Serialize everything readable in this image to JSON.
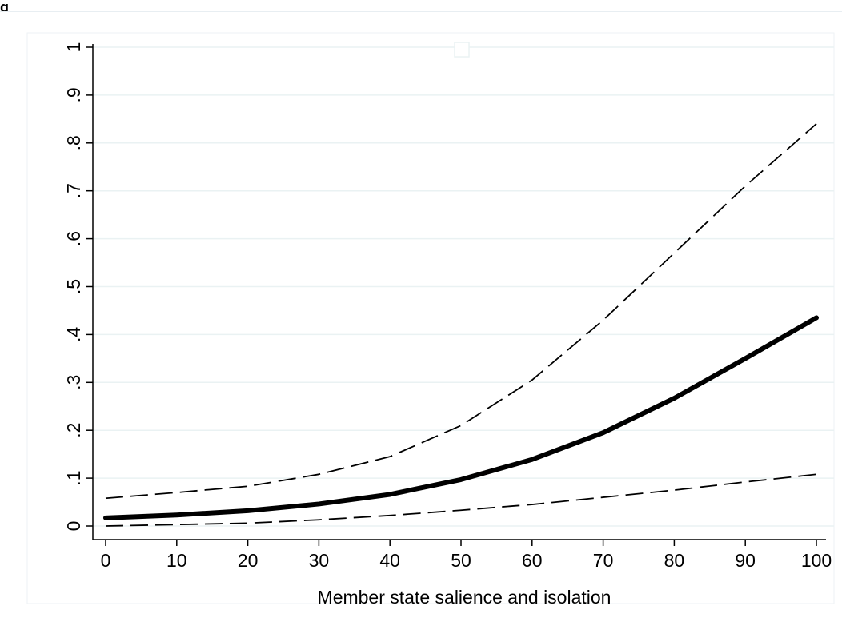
{
  "figure_label": "g",
  "chart_data": {
    "type": "line",
    "title": "",
    "xlabel": "Member state salience and isolation",
    "ylabel": "",
    "xlim": [
      0,
      100
    ],
    "ylim": [
      0,
      1
    ],
    "x": [
      0,
      10,
      20,
      30,
      40,
      50,
      60,
      70,
      80,
      90,
      100
    ],
    "x_ticks": [
      "0",
      "10",
      "20",
      "30",
      "40",
      "50",
      "60",
      "70",
      "80",
      "90",
      "100"
    ],
    "y_ticks": [
      "0",
      ".1",
      ".2",
      ".3",
      ".4",
      ".5",
      ".6",
      ".7",
      ".8",
      ".9",
      "1"
    ],
    "y_tick_values": [
      0,
      0.1,
      0.2,
      0.3,
      0.4,
      0.5,
      0.6,
      0.7,
      0.8,
      0.9,
      1
    ],
    "grid": true,
    "legend": "top-center",
    "series": [
      {
        "values": [
          0.017,
          0.023,
          0.032,
          0.046,
          0.066,
          0.097,
          0.139,
          0.195,
          0.267,
          0.35,
          0.435
        ],
        "style": "solid-thick",
        "color": "#000000"
      },
      {
        "values": [
          0.058,
          0.07,
          0.083,
          0.108,
          0.145,
          0.21,
          0.305,
          0.43,
          0.57,
          0.71,
          0.84
        ],
        "style": "dashed",
        "color": "#000000"
      },
      {
        "values": [
          0.0,
          0.003,
          0.006,
          0.013,
          0.022,
          0.033,
          0.045,
          0.06,
          0.075,
          0.092,
          0.108
        ],
        "style": "dashed",
        "color": "#000000"
      }
    ],
    "colors": {
      "grid": "#eaf2f3",
      "axis": "#000000",
      "legend_box": "#eaf2f3"
    }
  }
}
